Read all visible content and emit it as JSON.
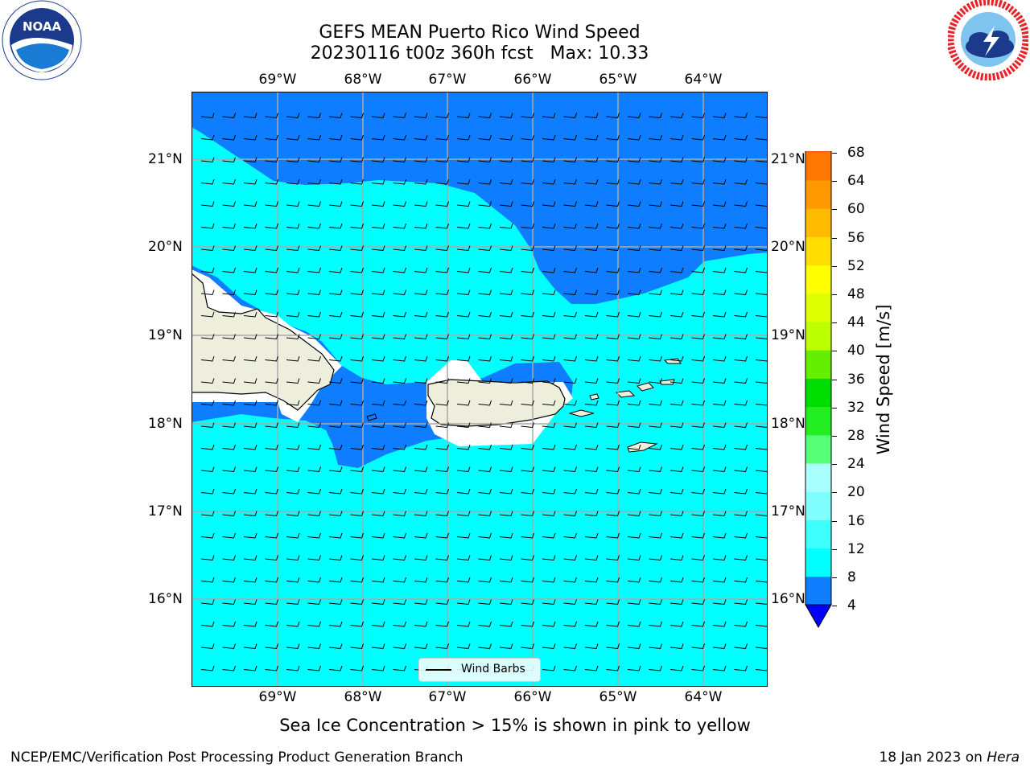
{
  "title": {
    "line1": "GEFS MEAN Puerto Rico Wind Speed",
    "line2": "20230116 t00z 360h fcst   Max: 10.33"
  },
  "logos": {
    "left": {
      "icon": "noaa-logo",
      "text": "NOAA"
    },
    "right": {
      "icon": "nws-logo"
    }
  },
  "map": {
    "lon_labels": [
      "69°W",
      "68°W",
      "67°W",
      "66°W",
      "65°W",
      "64°W"
    ],
    "lat_labels": [
      "21°N",
      "20°N",
      "19°N",
      "18°N",
      "17°N",
      "16°N"
    ],
    "legend": {
      "label": "Wind Barbs"
    },
    "colors": {
      "land": "#eeeedd",
      "band_4_8": "#0f7dff",
      "band_8_12": "#00ffff",
      "ice_free_white": "#ffffff",
      "grid": "#aaaaaa"
    }
  },
  "colorbar": {
    "label": "Wind Speed [m/s]",
    "ticks": [
      "68",
      "64",
      "60",
      "56",
      "52",
      "48",
      "44",
      "40",
      "36",
      "32",
      "28",
      "24",
      "20",
      "16",
      "12",
      "8",
      "4"
    ],
    "colors": [
      "#0000ff",
      "#0f7dff",
      "#00ffff",
      "#40ffff",
      "#80ffff",
      "#aaffff",
      "#55ff77",
      "#22ee22",
      "#00dd00",
      "#66ee00",
      "#bbff00",
      "#ddff00",
      "#ffff00",
      "#ffdd00",
      "#ffbb00",
      "#ff9900",
      "#ff7700",
      "#ff5500",
      "#ff3300",
      "#ff0000"
    ]
  },
  "note": "Sea Ice Concentration > 15% is shown in pink to yellow",
  "footer": {
    "left": "NCEP/EMC/Verification Post Processing Product Generation Branch",
    "right_prefix": "18 Jan 2023 on ",
    "right_host": "Hera"
  }
}
